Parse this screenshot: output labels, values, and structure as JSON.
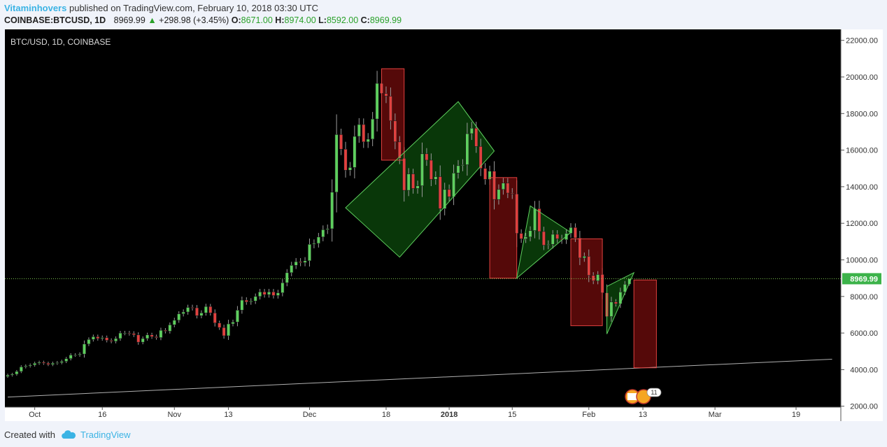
{
  "header": {
    "username": "Vitaminhovers",
    "published_text": "published on TradingView.com, February 10, 2018 03:30 UTC",
    "symbol_line": "COINBASE:BTCUSD, 1D",
    "close_value": "8969.99",
    "change_text": "+298.98 (+3.45%)",
    "open_label": "O:",
    "open_value": "8671.00",
    "high_label": "H:",
    "high_value": "8974.00",
    "low_label": "L:",
    "low_value": "8592.00",
    "close_label": "C:",
    "close_value2": "8969.99"
  },
  "footer": {
    "created_with": "Created with",
    "brand": "TradingView"
  },
  "chart_data": {
    "type": "candlestick",
    "title": "BTC/USD, 1D, COINBASE",
    "y_ticks": [
      "22000.00",
      "20000.00",
      "18000.00",
      "16000.00",
      "14000.00",
      "12000.00",
      "10000.00",
      "8000.00",
      "6000.00",
      "4000.00",
      "2000.00"
    ],
    "ylim": [
      1950,
      22600
    ],
    "last_price": "8969.99",
    "x_labels": [
      {
        "label": "Oct",
        "date": "2017-10-01"
      },
      {
        "label": "16",
        "date": "2017-10-16"
      },
      {
        "label": "Nov",
        "date": "2017-11-01"
      },
      {
        "label": "13",
        "date": "2017-11-13"
      },
      {
        "label": "Dec",
        "date": "2017-12-01"
      },
      {
        "label": "18",
        "date": "2017-12-18"
      },
      {
        "label": "2018",
        "date": "2018-01-01"
      },
      {
        "label": "15",
        "date": "2018-01-15"
      },
      {
        "label": "Feb",
        "date": "2018-02-01"
      },
      {
        "label": "13",
        "date": "2018-02-13"
      },
      {
        "label": "Mar",
        "date": "2018-03-01"
      },
      {
        "label": "19",
        "date": "2018-03-19"
      }
    ],
    "candles": [
      {
        "date": "2017-09-25",
        "close": 3700
      },
      {
        "date": "2017-09-26",
        "close": 3750
      },
      {
        "date": "2017-09-27",
        "close": 3900
      },
      {
        "date": "2017-09-28",
        "close": 4150
      },
      {
        "date": "2017-09-29",
        "close": 4200
      },
      {
        "date": "2017-09-30",
        "close": 4250
      },
      {
        "date": "2017-10-01",
        "close": 4350
      },
      {
        "date": "2017-10-02",
        "close": 4400
      },
      {
        "date": "2017-10-03",
        "close": 4350
      },
      {
        "date": "2017-10-04",
        "close": 4280
      },
      {
        "date": "2017-10-05",
        "close": 4350
      },
      {
        "date": "2017-10-06",
        "close": 4380
      },
      {
        "date": "2017-10-07",
        "close": 4450
      },
      {
        "date": "2017-10-08",
        "close": 4600
      },
      {
        "date": "2017-10-09",
        "close": 4800
      },
      {
        "date": "2017-10-10",
        "close": 4800
      },
      {
        "date": "2017-10-11",
        "close": 4850
      },
      {
        "date": "2017-10-12",
        "close": 5400
      },
      {
        "date": "2017-10-13",
        "close": 5650
      },
      {
        "date": "2017-10-14",
        "close": 5800
      },
      {
        "date": "2017-10-15",
        "close": 5700
      },
      {
        "date": "2017-10-16",
        "close": 5750
      },
      {
        "date": "2017-10-17",
        "close": 5600
      },
      {
        "date": "2017-10-18",
        "close": 5550
      },
      {
        "date": "2017-10-19",
        "close": 5700
      },
      {
        "date": "2017-10-20",
        "close": 6000
      },
      {
        "date": "2017-10-21",
        "close": 6000
      },
      {
        "date": "2017-10-22",
        "close": 5980
      },
      {
        "date": "2017-10-23",
        "close": 5900
      },
      {
        "date": "2017-10-24",
        "close": 5500
      },
      {
        "date": "2017-10-25",
        "close": 5700
      },
      {
        "date": "2017-10-26",
        "close": 5900
      },
      {
        "date": "2017-10-27",
        "close": 5800
      },
      {
        "date": "2017-10-28",
        "close": 5750
      },
      {
        "date": "2017-10-29",
        "close": 6150
      },
      {
        "date": "2017-10-30",
        "close": 6100
      },
      {
        "date": "2017-10-31",
        "close": 6450
      },
      {
        "date": "2017-11-01",
        "close": 6700
      },
      {
        "date": "2017-11-02",
        "close": 7050
      },
      {
        "date": "2017-11-03",
        "close": 7150
      },
      {
        "date": "2017-11-04",
        "close": 7400
      },
      {
        "date": "2017-11-05",
        "close": 7380
      },
      {
        "date": "2017-11-06",
        "close": 6950
      },
      {
        "date": "2017-11-07",
        "close": 7100
      },
      {
        "date": "2017-11-08",
        "close": 7450
      },
      {
        "date": "2017-11-09",
        "close": 7100
      },
      {
        "date": "2017-11-10",
        "close": 6550
      },
      {
        "date": "2017-11-11",
        "close": 6300
      },
      {
        "date": "2017-11-12",
        "close": 5850
      },
      {
        "date": "2017-11-13",
        "close": 6500
      },
      {
        "date": "2017-11-14",
        "close": 6600
      },
      {
        "date": "2017-11-15",
        "close": 7250
      },
      {
        "date": "2017-11-16",
        "close": 7800
      },
      {
        "date": "2017-11-17",
        "close": 7700
      },
      {
        "date": "2017-11-18",
        "close": 7750
      },
      {
        "date": "2017-11-19",
        "close": 8000
      },
      {
        "date": "2017-11-20",
        "close": 8250
      },
      {
        "date": "2017-11-21",
        "close": 8100
      },
      {
        "date": "2017-11-22",
        "close": 8250
      },
      {
        "date": "2017-11-23",
        "close": 8050
      },
      {
        "date": "2017-11-24",
        "close": 8200
      },
      {
        "date": "2017-11-25",
        "close": 8750
      },
      {
        "date": "2017-11-26",
        "close": 9300
      },
      {
        "date": "2017-11-27",
        "close": 9700
      },
      {
        "date": "2017-11-28",
        "close": 9900
      },
      {
        "date": "2017-11-29",
        "close": 9850
      },
      {
        "date": "2017-11-30",
        "close": 9950
      },
      {
        "date": "2017-12-01",
        "close": 10850
      },
      {
        "date": "2017-12-02",
        "close": 10900
      },
      {
        "date": "2017-12-03",
        "close": 11250
      },
      {
        "date": "2017-12-04",
        "close": 11650
      },
      {
        "date": "2017-12-05",
        "close": 11700
      },
      {
        "date": "2017-12-06",
        "close": 13700
      },
      {
        "date": "2017-12-07",
        "close": 16850
      },
      {
        "date": "2017-12-08",
        "close": 16050
      },
      {
        "date": "2017-12-09",
        "close": 14900
      },
      {
        "date": "2017-12-10",
        "close": 15050
      },
      {
        "date": "2017-12-11",
        "close": 16750
      },
      {
        "date": "2017-12-12",
        "close": 17400
      },
      {
        "date": "2017-12-13",
        "close": 16450
      },
      {
        "date": "2017-12-14",
        "close": 16600
      },
      {
        "date": "2017-12-15",
        "close": 17700
      },
      {
        "date": "2017-12-16",
        "close": 19650
      },
      {
        "date": "2017-12-17",
        "close": 19100
      },
      {
        "date": "2017-12-18",
        "close": 18950
      },
      {
        "date": "2017-12-19",
        "close": 17600
      },
      {
        "date": "2017-12-20",
        "close": 16450
      },
      {
        "date": "2017-12-21",
        "close": 15550
      },
      {
        "date": "2017-12-22",
        "close": 13800
      },
      {
        "date": "2017-12-23",
        "close": 14700
      },
      {
        "date": "2017-12-24",
        "close": 13900
      },
      {
        "date": "2017-12-25",
        "close": 14050
      },
      {
        "date": "2017-12-26",
        "close": 15800
      },
      {
        "date": "2017-12-27",
        "close": 15450
      },
      {
        "date": "2017-12-28",
        "close": 14400
      },
      {
        "date": "2017-12-29",
        "close": 14550
      },
      {
        "date": "2017-12-30",
        "close": 12800
      },
      {
        "date": "2017-12-31",
        "close": 13850
      },
      {
        "date": "2018-01-01",
        "close": 13450
      },
      {
        "date": "2018-01-02",
        "close": 14750
      },
      {
        "date": "2018-01-03",
        "close": 15150
      },
      {
        "date": "2018-01-04",
        "close": 15200
      },
      {
        "date": "2018-01-05",
        "close": 16900
      },
      {
        "date": "2018-01-06",
        "close": 17200
      },
      {
        "date": "2018-01-07",
        "close": 16200
      },
      {
        "date": "2018-01-08",
        "close": 15000
      },
      {
        "date": "2018-01-09",
        "close": 14400
      },
      {
        "date": "2018-01-10",
        "close": 14850
      },
      {
        "date": "2018-01-11",
        "close": 13300
      },
      {
        "date": "2018-01-12",
        "close": 13850
      },
      {
        "date": "2018-01-13",
        "close": 14200
      },
      {
        "date": "2018-01-14",
        "close": 13650
      },
      {
        "date": "2018-01-15",
        "close": 13600
      },
      {
        "date": "2018-01-16",
        "close": 11450
      },
      {
        "date": "2018-01-17",
        "close": 11150
      },
      {
        "date": "2018-01-18",
        "close": 11250
      },
      {
        "date": "2018-01-19",
        "close": 11600
      },
      {
        "date": "2018-01-20",
        "close": 12800
      },
      {
        "date": "2018-01-21",
        "close": 11550
      },
      {
        "date": "2018-01-22",
        "close": 10800
      },
      {
        "date": "2018-01-23",
        "close": 10850
      },
      {
        "date": "2018-01-24",
        "close": 11400
      },
      {
        "date": "2018-01-25",
        "close": 11150
      },
      {
        "date": "2018-01-26",
        "close": 11100
      },
      {
        "date": "2018-01-27",
        "close": 11450
      },
      {
        "date": "2018-01-28",
        "close": 11770
      },
      {
        "date": "2018-01-29",
        "close": 11200
      },
      {
        "date": "2018-01-30",
        "close": 10100
      },
      {
        "date": "2018-01-31",
        "close": 10200
      },
      {
        "date": "2018-02-01",
        "close": 9150
      },
      {
        "date": "2018-02-02",
        "close": 8850
      },
      {
        "date": "2018-02-03",
        "close": 9200
      },
      {
        "date": "2018-02-04",
        "close": 8200
      },
      {
        "date": "2018-02-05",
        "close": 6900
      },
      {
        "date": "2018-02-06",
        "close": 7700
      },
      {
        "date": "2018-02-07",
        "close": 7600
      },
      {
        "date": "2018-02-08",
        "close": 8250
      },
      {
        "date": "2018-02-09",
        "close": 8670
      },
      {
        "date": "2018-02-10",
        "open": 8671,
        "high": 8974,
        "low": 8592,
        "close": 8969.99
      }
    ],
    "up_color": "#5ecf5e",
    "down_color": "#e0413f",
    "annotations": [
      {
        "type": "rect",
        "color": "#e0413f",
        "x1": "2017-12-17",
        "x2": "2017-12-22",
        "y1": 15450,
        "y2": 20450
      },
      {
        "type": "channel",
        "color": "#5ecf5e",
        "points": [
          [
            "2017-12-09",
            12850
          ],
          [
            "2018-01-03",
            18650
          ],
          [
            "2018-01-11",
            15950
          ],
          [
            "2017-12-21",
            10150
          ]
        ]
      },
      {
        "type": "rect",
        "color": "#e0413f",
        "x1": "2018-01-10",
        "x2": "2018-01-16",
        "y1": 9000,
        "y2": 14500
      },
      {
        "type": "triangle",
        "color": "#5ecf5e",
        "points": [
          [
            "2018-01-16",
            9000
          ],
          [
            "2018-01-19",
            12950
          ],
          [
            "2018-01-28",
            11500
          ]
        ]
      },
      {
        "type": "rect",
        "color": "#e0413f",
        "x1": "2018-01-28",
        "x2": "2018-02-04",
        "y1": 6400,
        "y2": 11150
      },
      {
        "type": "triangle",
        "color": "#5ecf5e",
        "points": [
          [
            "2018-02-05",
            8550
          ],
          [
            "2018-02-11",
            9300
          ],
          [
            "2018-02-05",
            5950
          ]
        ]
      },
      {
        "type": "rect",
        "color": "#e0413f",
        "x1": "2018-02-11",
        "x2": "2018-02-16",
        "y1": 4100,
        "y2": 8900
      },
      {
        "type": "trendline",
        "color": "#b0b0b0",
        "points": [
          [
            "2017-09-25",
            2500
          ],
          [
            "2018-03-27",
            4570
          ]
        ]
      }
    ]
  }
}
